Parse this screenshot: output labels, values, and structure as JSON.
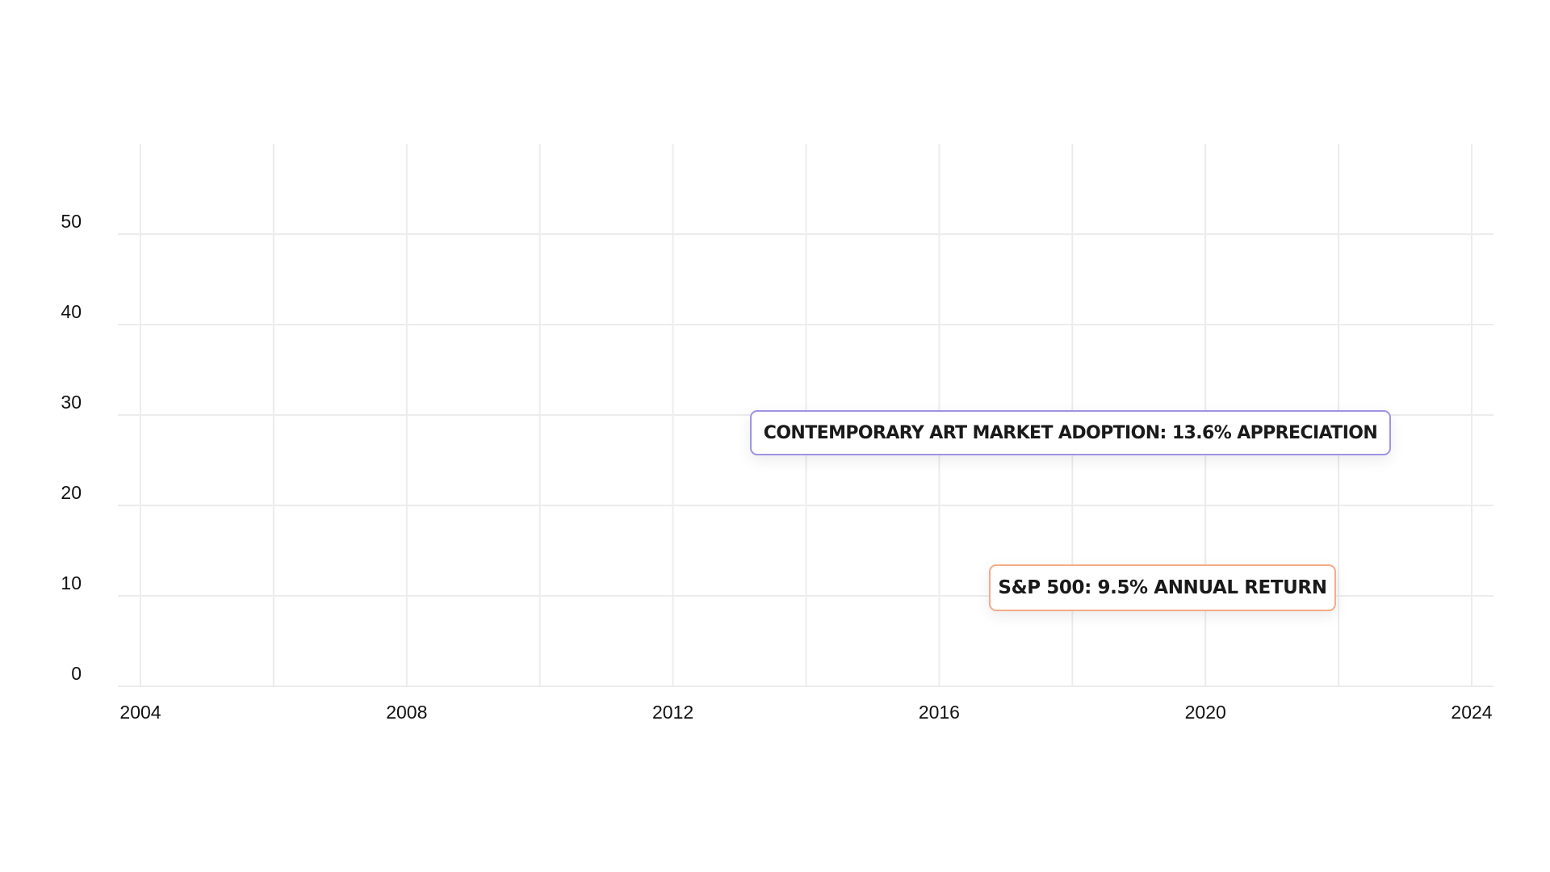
{
  "chart_data": {
    "type": "line",
    "xlim": [
      2004,
      2024
    ],
    "xticks": [
      2004,
      2008,
      2012,
      2016,
      2020,
      2024
    ],
    "xminorticks": [
      2006,
      2010,
      2014,
      2018,
      2022
    ],
    "ylim": [
      0,
      60
    ],
    "yticks": [
      0,
      10,
      20,
      30,
      40,
      50
    ],
    "grid": true,
    "annotations": [
      {
        "text": "CONTEMPORARY ART MARKET ADOPTION: 13.6% APPRECIATION",
        "color": "#9d93e3"
      },
      {
        "text": "S&P 500: 9.5% ANNUAL RETURN",
        "color": "#f5ab88"
      }
    ]
  }
}
